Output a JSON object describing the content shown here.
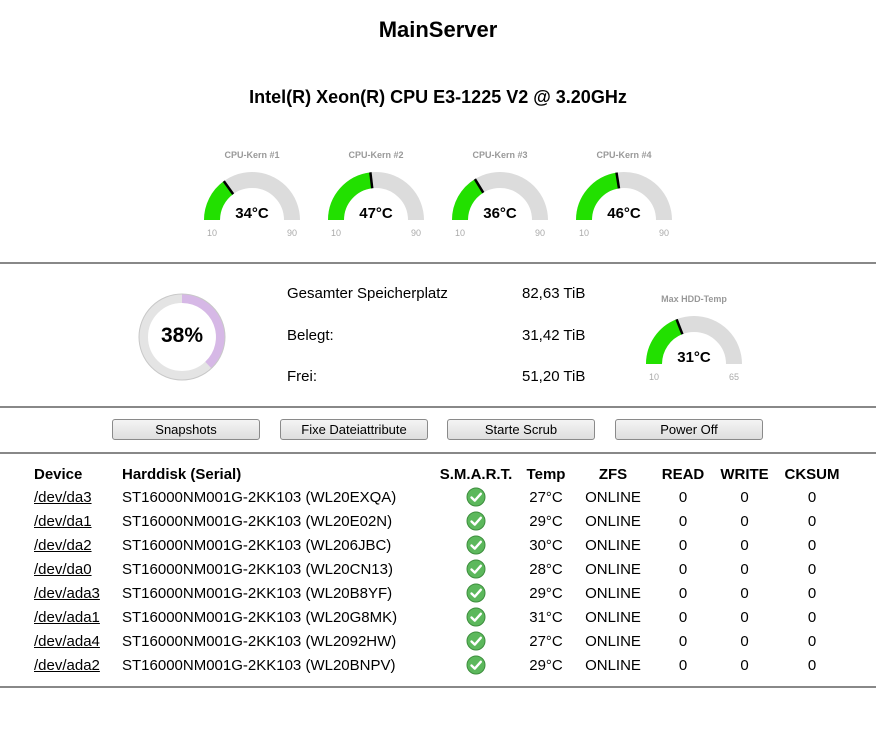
{
  "server_name": "MainServer",
  "cpu_name": "Intel(R) Xeon(R) CPU E3-1225 V2 @ 3.20GHz",
  "gauge_min": "10",
  "gauge_max": "90",
  "cpu_cores": [
    {
      "label": "CPU-Kern #1",
      "value": 34,
      "display": "34°C"
    },
    {
      "label": "CPU-Kern #2",
      "value": 47,
      "display": "47°C"
    },
    {
      "label": "CPU-Kern #3",
      "value": 36,
      "display": "36°C"
    },
    {
      "label": "CPU-Kern #4",
      "value": 46,
      "display": "46°C"
    }
  ],
  "storage": {
    "used_percent": 38,
    "used_percent_label": "38%",
    "rows": [
      {
        "label": "Gesamter Speicherplatz",
        "value": "82,63 TiB"
      },
      {
        "label": "Belegt:",
        "value": "31,42 TiB"
      },
      {
        "label": "Frei:",
        "value": "51,20 TiB"
      }
    ]
  },
  "hdd_gauge": {
    "label": "Max HDD-Temp",
    "value": 31,
    "display": "31°C",
    "min": "10",
    "max": "65"
  },
  "buttons": {
    "snapshots": "Snapshots",
    "fix_attr": "Fixe Dateiattribute",
    "scrub": "Starte Scrub",
    "power_off": "Power Off"
  },
  "table": {
    "headers": [
      "Device",
      "Harddisk (Serial)",
      "S.M.A.R.T.",
      "Temp",
      "ZFS",
      "READ",
      "WRITE",
      "CKSUM"
    ],
    "rows": [
      {
        "device": "/dev/da3",
        "disk": "ST16000NM001G-2KK103 (WL20EXQA)",
        "temp": "27°C",
        "zfs": "ONLINE",
        "read": "0",
        "write": "0",
        "cksum": "0"
      },
      {
        "device": "/dev/da1",
        "disk": "ST16000NM001G-2KK103 (WL20E02N)",
        "temp": "29°C",
        "zfs": "ONLINE",
        "read": "0",
        "write": "0",
        "cksum": "0"
      },
      {
        "device": "/dev/da2",
        "disk": "ST16000NM001G-2KK103 (WL206JBC)",
        "temp": "30°C",
        "zfs": "ONLINE",
        "read": "0",
        "write": "0",
        "cksum": "0"
      },
      {
        "device": "/dev/da0",
        "disk": "ST16000NM001G-2KK103 (WL20CN13)",
        "temp": "28°C",
        "zfs": "ONLINE",
        "read": "0",
        "write": "0",
        "cksum": "0"
      },
      {
        "device": "/dev/ada3",
        "disk": "ST16000NM001G-2KK103 (WL20B8YF)",
        "temp": "29°C",
        "zfs": "ONLINE",
        "read": "0",
        "write": "0",
        "cksum": "0"
      },
      {
        "device": "/dev/ada1",
        "disk": "ST16000NM001G-2KK103 (WL20G8MK)",
        "temp": "31°C",
        "zfs": "ONLINE",
        "read": "0",
        "write": "0",
        "cksum": "0"
      },
      {
        "device": "/dev/ada4",
        "disk": "ST16000NM001G-2KK103 (WL2092HW)",
        "temp": "27°C",
        "zfs": "ONLINE",
        "read": "0",
        "write": "0",
        "cksum": "0"
      },
      {
        "device": "/dev/ada2",
        "disk": "ST16000NM001G-2KK103 (WL20BNPV)",
        "temp": "29°C",
        "zfs": "ONLINE",
        "read": "0",
        "write": "0",
        "cksum": "0"
      }
    ]
  },
  "colors": {
    "gauge_fill": "#22e000",
    "gauge_track": "#dcdcdc",
    "donut_fill": "#d6b8e6",
    "donut_track": "#e4e4e4",
    "smart_ok": "#5cb85c"
  }
}
